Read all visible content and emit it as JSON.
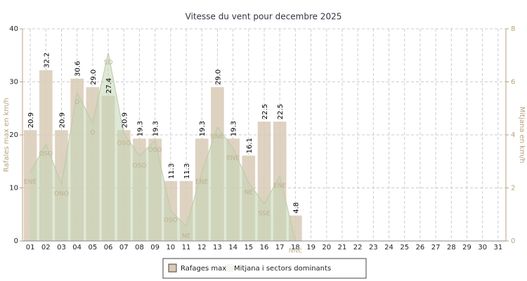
{
  "chart_data": {
    "type": "bar",
    "title": "Vitesse du vent pour decembre 2025",
    "y_label": "Rafales max en km/h",
    "y2_label": "Mitjana en km/h",
    "categories": [
      "01",
      "02",
      "03",
      "04",
      "05",
      "06",
      "07",
      "08",
      "09",
      "10",
      "11",
      "12",
      "13",
      "14",
      "15",
      "16",
      "17",
      "18",
      "19",
      "20",
      "21",
      "22",
      "23",
      "24",
      "25",
      "26",
      "27",
      "28",
      "29",
      "30",
      "31"
    ],
    "series": [
      {
        "name": "Rafages max",
        "color": "#d8cab6",
        "axis": "y",
        "values": [
          20.9,
          32.2,
          20.9,
          30.6,
          29.0,
          27.4,
          20.9,
          19.3,
          19.3,
          11.3,
          11.3,
          19.3,
          29.0,
          19.3,
          16.1,
          22.5,
          22.5,
          4.8,
          null,
          null,
          null,
          null,
          null,
          null,
          null,
          null,
          null,
          null,
          null,
          null,
          null
        ],
        "value_labels": [
          "20.9",
          "32.2",
          "20.9",
          "30.6",
          "29.0",
          "27.4",
          "20.9",
          "19.3",
          "19.3",
          "11.3",
          "11.3",
          "19.3",
          "29.0",
          "19.3",
          "16.1",
          "22.5",
          "22.5",
          "4.8",
          null,
          null,
          null,
          null,
          null,
          null,
          null,
          null,
          null,
          null,
          null,
          null,
          null
        ]
      },
      {
        "name": "Mitjana i sectors dominants",
        "color": "#c5d6b5",
        "axis": "y2",
        "values": [
          2.6,
          3.65,
          2.15,
          5.6,
          4.45,
          7.1,
          4.05,
          3.2,
          3.8,
          1.15,
          0.55,
          2.6,
          4.3,
          3.5,
          2.2,
          1.4,
          2.45,
          0,
          null,
          null,
          null,
          null,
          null,
          null,
          null,
          null,
          null,
          null,
          null,
          null,
          null
        ],
        "direction_labels": [
          "ENE",
          "OSO",
          "ONO",
          "O",
          "O",
          "SO",
          "OSO",
          "OSO",
          "OSO",
          "OSO",
          "NE",
          "ENE",
          "ENE",
          "ENE",
          "NE",
          "SSE",
          "ENE",
          "NNE",
          null,
          null,
          null,
          null,
          null,
          null,
          null,
          null,
          null,
          null,
          null,
          null,
          null
        ]
      }
    ],
    "ylim": [
      0,
      40
    ],
    "yticks": [
      0,
      10,
      20,
      30,
      40
    ],
    "y2lim": [
      0,
      8
    ],
    "y2ticks": [
      0,
      2,
      4,
      6,
      8
    ],
    "grid": true
  }
}
